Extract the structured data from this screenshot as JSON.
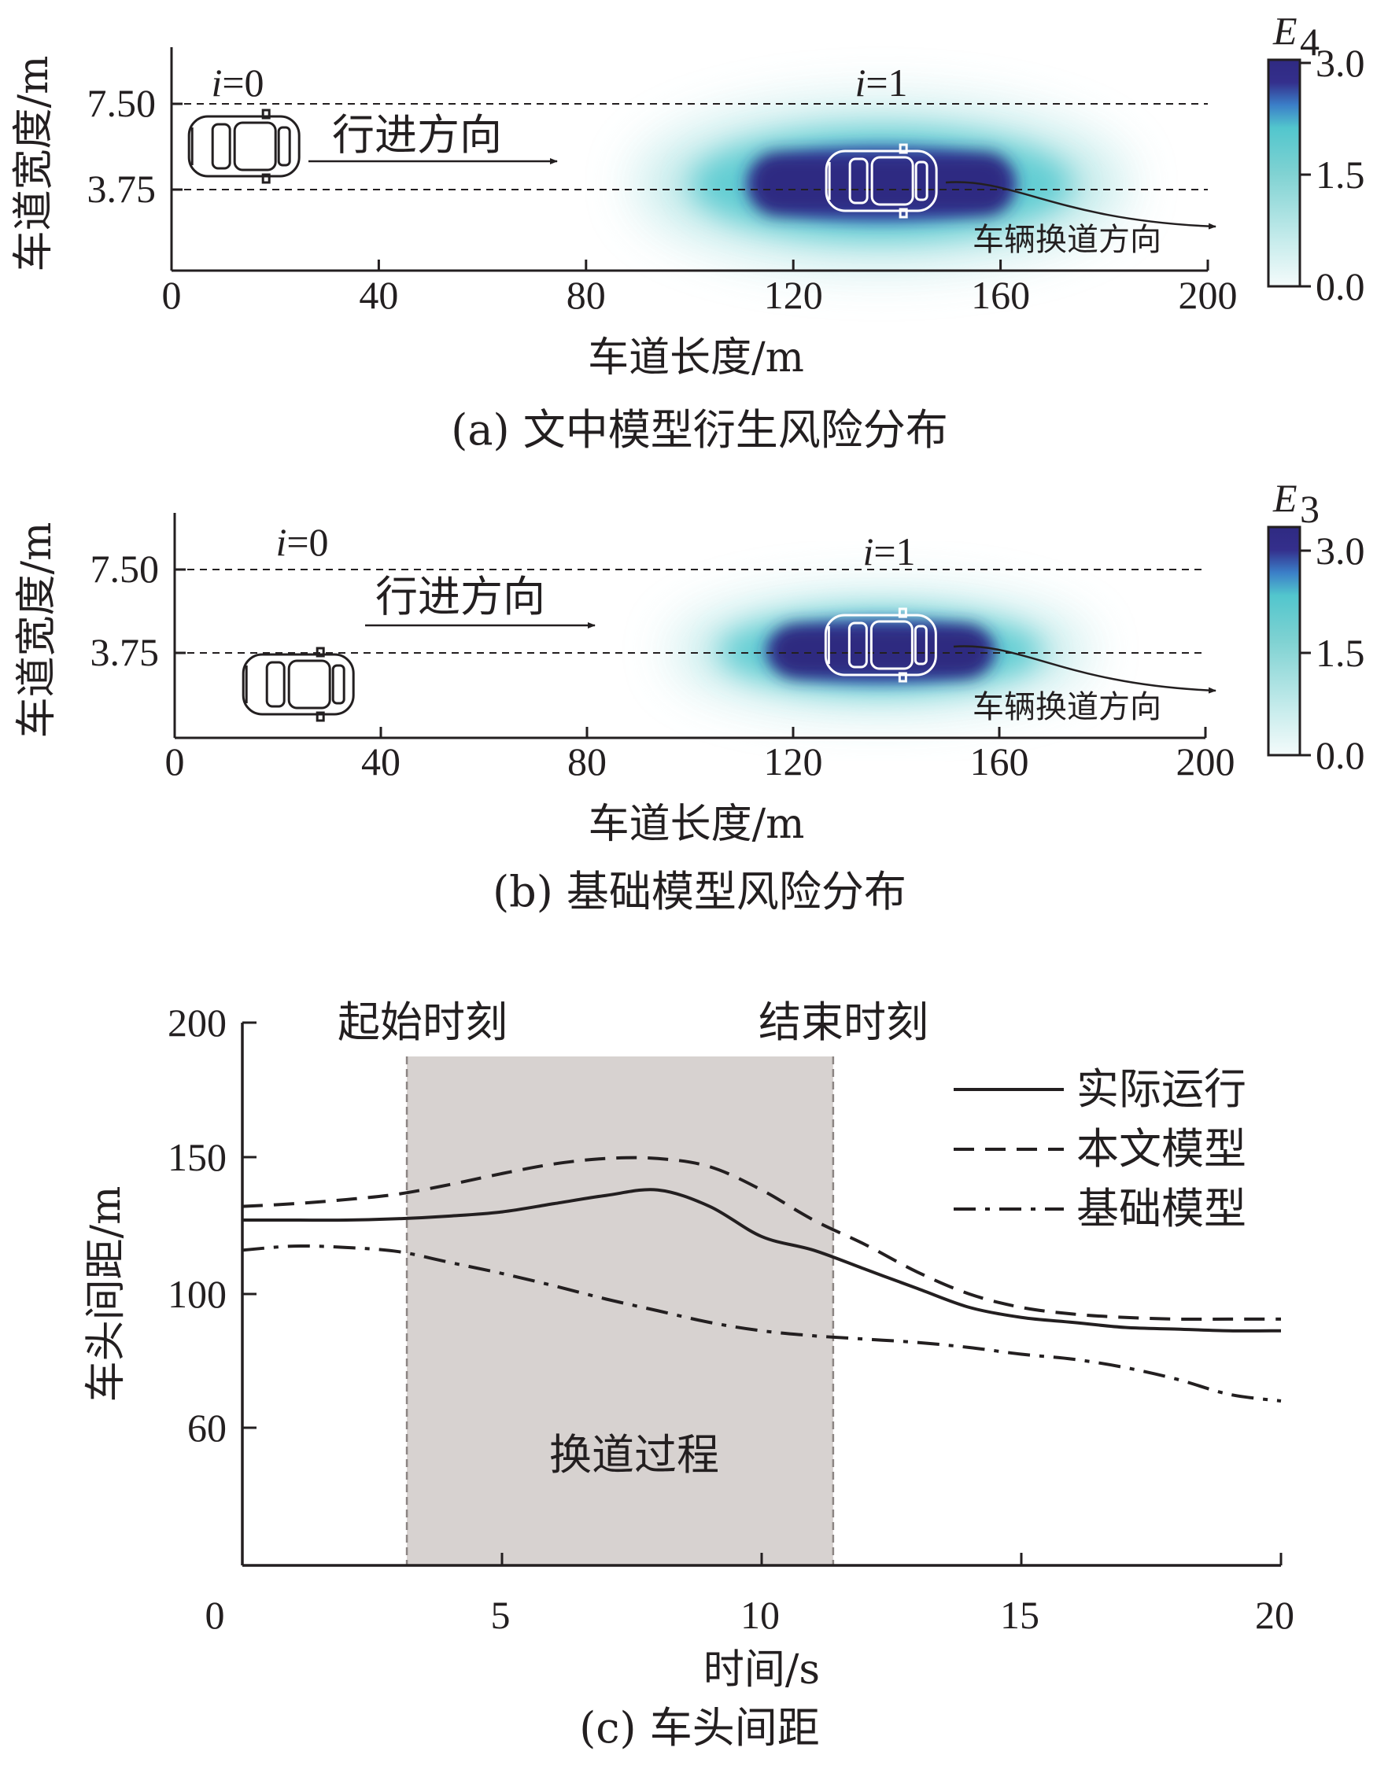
{
  "chart_data": [
    {
      "type": "heatmap",
      "caption": "(a) 文中模型衍生风险分布",
      "xlabel": "车道长度/m",
      "ylabel": "车道宽度/m",
      "xlim": [
        0,
        200
      ],
      "xticks": [
        "0",
        "40",
        "80",
        "120",
        "160",
        "200"
      ],
      "yticks": [
        "7.50",
        "3.75"
      ],
      "lane_lines": [
        7.5,
        3.75
      ],
      "colorbar": {
        "label": "E",
        "subscript": "4",
        "ticks": [
          "3.0",
          "1.5",
          "0.0"
        ],
        "range": [
          0.0,
          3.0
        ]
      },
      "vehicles": [
        {
          "label": "i=0",
          "x": 14,
          "lane": "left"
        },
        {
          "label": "i=1",
          "x": 137,
          "lane": "left"
        }
      ],
      "annotations": {
        "direction": "行进方向",
        "lane_change": "车辆换道方向"
      },
      "risk_field": {
        "center_x": 137,
        "x_extent": [
          89,
          191
        ],
        "max": 3.0
      }
    },
    {
      "type": "heatmap",
      "caption": "(b) 基础模型风险分布",
      "xlabel": "车道长度/m",
      "ylabel": "车道宽度/m",
      "xlim": [
        0,
        200
      ],
      "xticks": [
        "0",
        "40",
        "80",
        "120",
        "160",
        "200"
      ],
      "yticks": [
        "7.50",
        "3.75"
      ],
      "lane_lines": [
        7.5,
        3.75
      ],
      "colorbar": {
        "label": "E",
        "subscript": "3",
        "ticks": [
          "3.0",
          "1.5",
          "0.0"
        ],
        "range": [
          0.0,
          3.0
        ]
      },
      "vehicles": [
        {
          "label": "i=0",
          "x": 24,
          "lane": "right"
        },
        {
          "label": "i=1",
          "x": 137,
          "lane": "left"
        }
      ],
      "annotations": {
        "direction": "行进方向",
        "lane_change": "车辆换道方向"
      },
      "risk_field": {
        "center_x": 137,
        "x_extent": [
          96,
          183
        ],
        "max": 3.0
      }
    },
    {
      "type": "line",
      "caption": "(c) 车头间距",
      "xlabel": "时间/s",
      "ylabel": "车头间距/m",
      "xlim": [
        0,
        20
      ],
      "xticks": [
        "0",
        "5",
        "10",
        "15",
        "20"
      ],
      "ylim": [
        25,
        200
      ],
      "yticks": [
        "200",
        "150",
        "100",
        "60"
      ],
      "shaded_region": {
        "start": 3.1,
        "end": 11.2,
        "label": "换道过程",
        "start_label": "起始时刻",
        "end_label": "结束时刻"
      },
      "x": [
        0,
        1,
        2,
        3,
        4,
        5,
        6,
        7,
        8,
        9,
        10,
        11,
        12,
        13,
        14,
        15,
        16,
        17,
        18,
        19,
        20
      ],
      "series": [
        {
          "name": "实际运行",
          "style": "solid",
          "values": [
            127,
            127,
            127,
            127.5,
            128.5,
            130,
            133,
            136,
            138,
            132,
            121,
            116,
            109,
            102,
            96,
            93,
            91.5,
            90,
            89.5,
            89,
            89
          ]
        },
        {
          "name": "本文模型",
          "style": "dashed",
          "values": [
            132,
            133,
            134.5,
            136.5,
            140,
            144,
            147.5,
            149.5,
            149.5,
            146.5,
            138,
            127,
            118,
            108,
            100,
            96,
            94,
            93,
            92.5,
            92.5,
            92.5
          ]
        },
        {
          "name": "基础模型",
          "style": "dashdot",
          "values": [
            116,
            117.5,
            117,
            115.5,
            111.5,
            107.5,
            103,
            98.5,
            95,
            91.5,
            89,
            87.5,
            86.5,
            85.5,
            84,
            82,
            80.5,
            78,
            74.5,
            70,
            68
          ]
        }
      ],
      "legend_position": "top-right"
    }
  ]
}
